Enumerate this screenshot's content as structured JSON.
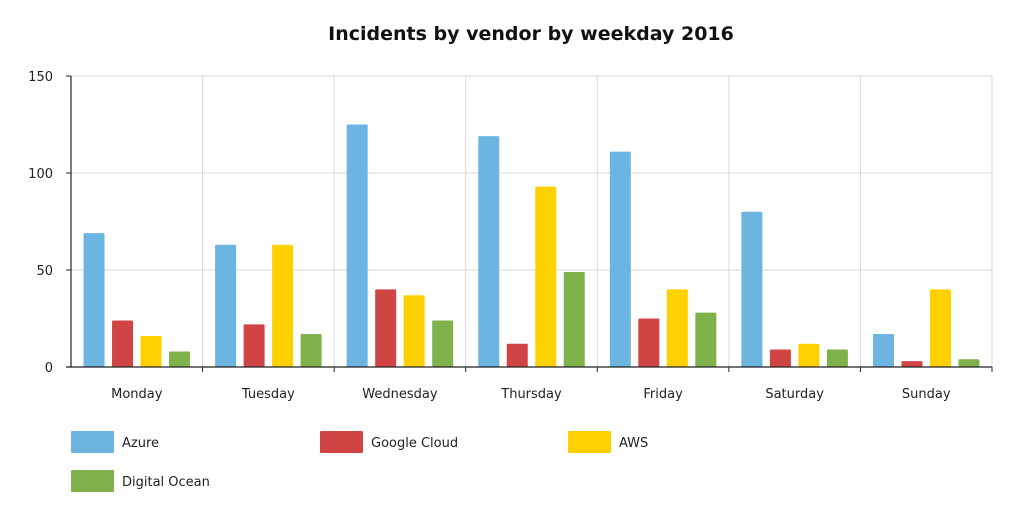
{
  "chart_data": {
    "type": "bar",
    "title": "Incidents by vendor by weekday 2016",
    "xlabel": "",
    "ylabel": "",
    "categories": [
      "Monday",
      "Tuesday",
      "Wednesday",
      "Thursday",
      "Friday",
      "Saturday",
      "Sunday"
    ],
    "series": [
      {
        "name": "Azure",
        "color": "#6cb5e0",
        "values": [
          69,
          63,
          125,
          119,
          111,
          80,
          17
        ]
      },
      {
        "name": "Google Cloud",
        "color": "#d04444",
        "values": [
          24,
          22,
          40,
          12,
          25,
          9,
          3
        ]
      },
      {
        "name": "AWS",
        "color": "#ffd000",
        "values": [
          16,
          63,
          37,
          93,
          40,
          12,
          40
        ]
      },
      {
        "name": "Digital Ocean",
        "color": "#7fb24b",
        "values": [
          8,
          17,
          24,
          49,
          28,
          9,
          4
        ]
      }
    ],
    "ylim": [
      0,
      150
    ],
    "yticks": [
      "0",
      "50",
      "100",
      "150"
    ],
    "grid": true,
    "legend_position": "bottom"
  }
}
